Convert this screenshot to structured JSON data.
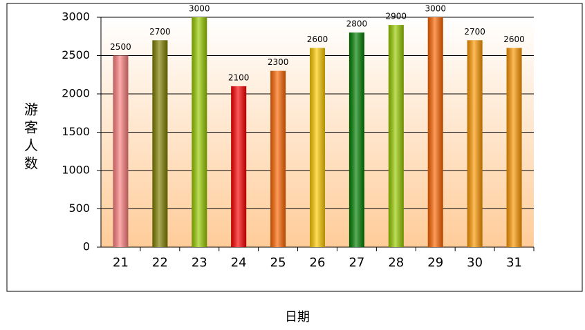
{
  "chart_data": {
    "type": "bar",
    "x_label": "日期",
    "y_label": "游客人数",
    "categories": [
      "21",
      "22",
      "23",
      "24",
      "25",
      "26",
      "27",
      "28",
      "29",
      "30",
      "31"
    ],
    "values": [
      2500,
      2700,
      3000,
      2100,
      2300,
      2600,
      2800,
      2900,
      3000,
      2700,
      2600
    ],
    "colors": [
      "#ff8080",
      "#808000",
      "#99cc00",
      "#ff0000",
      "#ff6600",
      "#ffcc00",
      "#008000",
      "#99cc00",
      "#ff6600",
      "#ff9900",
      "#ff9900"
    ],
    "ylim": [
      0,
      3000
    ],
    "yticks": [
      0,
      500,
      1000,
      1500,
      2000,
      2500,
      3000
    ],
    "grid": true
  }
}
